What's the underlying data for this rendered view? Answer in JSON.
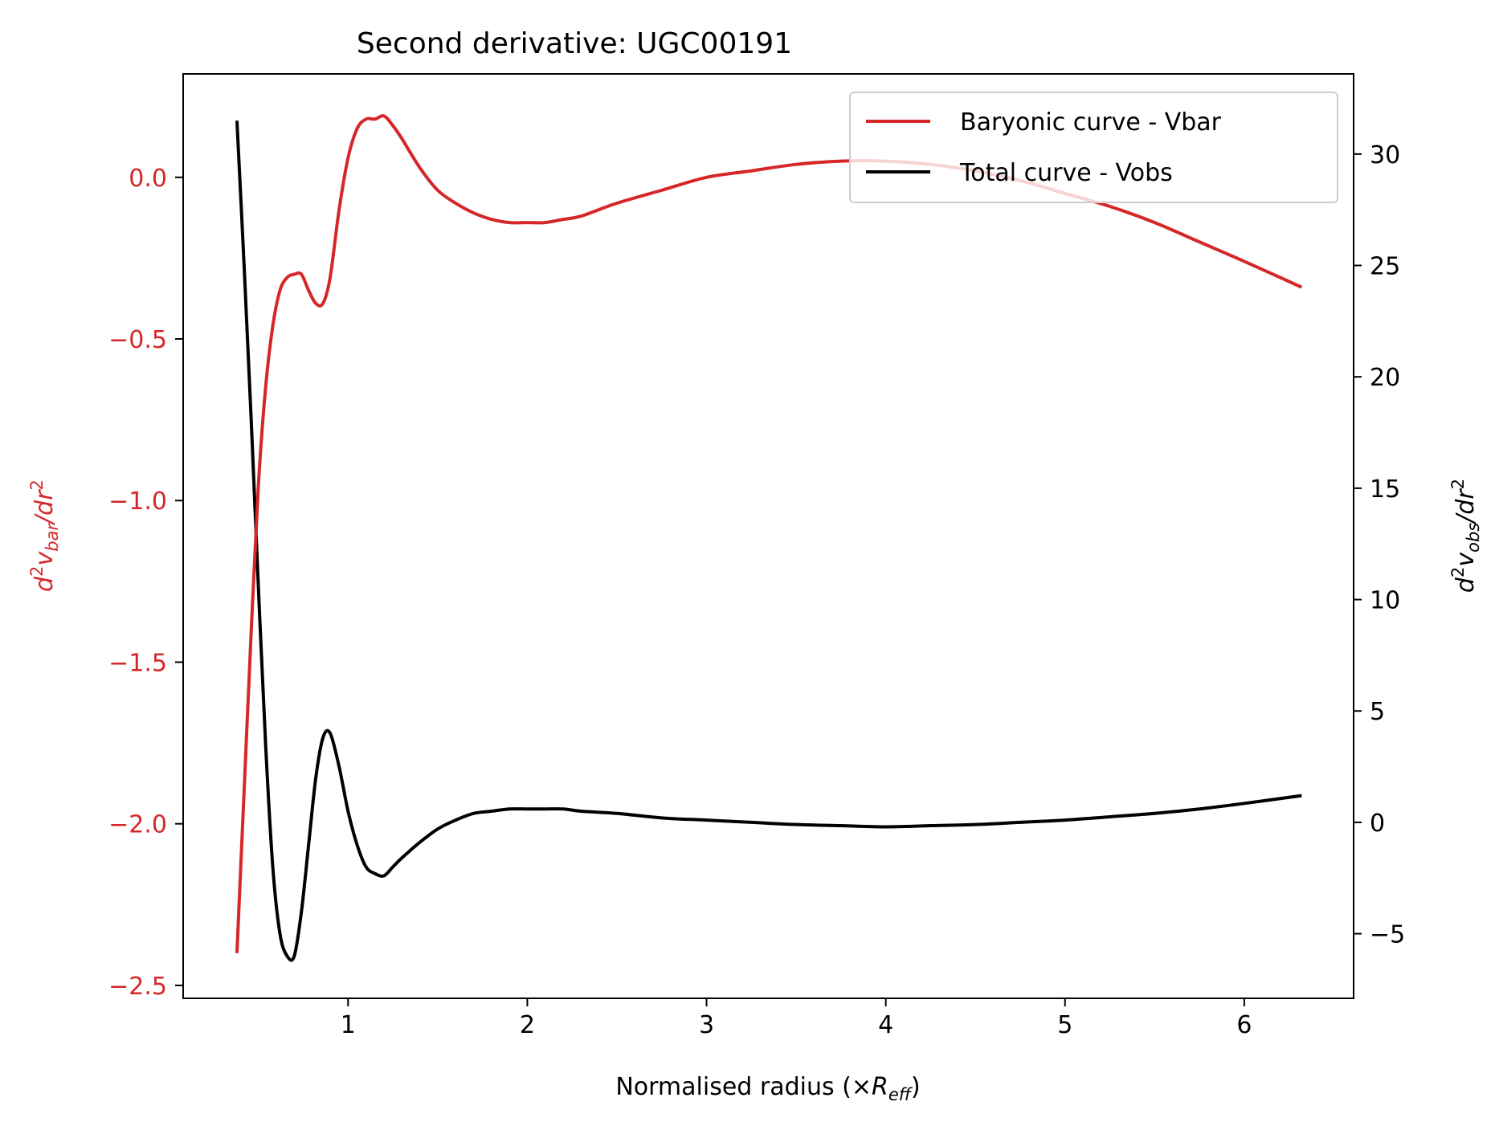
{
  "chart_data": {
    "type": "line",
    "title": "Second derivative: UGC00191",
    "xlabel": {
      "main": "Normalised radius (×",
      "var": "R",
      "sub": "eff",
      "close": ")"
    },
    "ylabel_left": {
      "d": "d",
      "sup1": "2",
      "v": "v",
      "sub": "bar",
      "slash": "/dr",
      "sup2": "2"
    },
    "ylabel_right": {
      "d": "d",
      "sup1": "2",
      "v": "v",
      "sub": "obs",
      "slash": "/dr",
      "sup2": "2"
    },
    "xlim": [
      0.08,
      6.61
    ],
    "ylim_left": [
      -2.54,
      0.32
    ],
    "ylim_right": [
      -7.9,
      33.6
    ],
    "x_ticks": [
      1,
      2,
      3,
      4,
      5,
      6
    ],
    "y_left_ticks": [
      0.0,
      -0.5,
      -1.0,
      -1.5,
      -2.0,
      -2.5
    ],
    "y_left_tick_labels": [
      "0.0",
      "−0.5",
      "−1.0",
      "−1.5",
      "−2.0",
      "−2.5"
    ],
    "y_right_ticks": [
      30,
      25,
      20,
      15,
      10,
      5,
      0,
      -5
    ],
    "y_right_tick_labels": [
      "30",
      "25",
      "20",
      "15",
      "10",
      "5",
      "0",
      "−5"
    ],
    "grid": false,
    "legend": {
      "position": "upper right"
    },
    "series": [
      {
        "name": "Baryonic curve - Vbar",
        "axis": "left",
        "color": "#d62728",
        "x": [
          0.38,
          0.42,
          0.46,
          0.5,
          0.54,
          0.58,
          0.62,
          0.66,
          0.7,
          0.74,
          0.78,
          0.82,
          0.86,
          0.9,
          0.95,
          1.0,
          1.05,
          1.1,
          1.15,
          1.2,
          1.25,
          1.3,
          1.4,
          1.5,
          1.6,
          1.7,
          1.8,
          1.9,
          2.0,
          2.1,
          2.2,
          2.3,
          2.5,
          2.75,
          3.0,
          3.25,
          3.5,
          3.75,
          4.0,
          4.25,
          4.5,
          4.75,
          5.0,
          5.25,
          5.5,
          5.75,
          6.0,
          6.32
        ],
        "y": [
          -2.4,
          -1.9,
          -1.4,
          -0.95,
          -0.65,
          -0.46,
          -0.35,
          -0.31,
          -0.3,
          -0.3,
          -0.35,
          -0.39,
          -0.39,
          -0.31,
          -0.1,
          0.06,
          0.15,
          0.18,
          0.18,
          0.19,
          0.16,
          0.12,
          0.03,
          -0.04,
          -0.08,
          -0.11,
          -0.13,
          -0.14,
          -0.14,
          -0.14,
          -0.13,
          -0.12,
          -0.08,
          -0.04,
          0.0,
          0.02,
          0.04,
          0.05,
          0.05,
          0.04,
          0.02,
          -0.01,
          -0.05,
          -0.09,
          -0.14,
          -0.2,
          -0.26,
          -0.34
        ]
      },
      {
        "name": "Total curve - Vobs",
        "axis": "right",
        "color": "#000000",
        "x": [
          0.38,
          0.42,
          0.46,
          0.5,
          0.54,
          0.58,
          0.62,
          0.66,
          0.7,
          0.74,
          0.78,
          0.82,
          0.86,
          0.9,
          0.95,
          1.0,
          1.05,
          1.1,
          1.15,
          1.2,
          1.25,
          1.3,
          1.4,
          1.5,
          1.6,
          1.7,
          1.8,
          1.9,
          2.0,
          2.1,
          2.2,
          2.3,
          2.5,
          2.75,
          3.0,
          3.25,
          3.5,
          3.75,
          4.0,
          4.25,
          4.5,
          4.75,
          5.0,
          5.25,
          5.5,
          5.75,
          6.0,
          6.32
        ],
        "y": [
          31.5,
          25.0,
          18.0,
          10.5,
          3.5,
          -2.0,
          -5.0,
          -6.0,
          -6.0,
          -4.0,
          -1.0,
          2.0,
          3.8,
          4.0,
          2.5,
          0.5,
          -1.0,
          -2.0,
          -2.3,
          -2.4,
          -2.0,
          -1.6,
          -0.9,
          -0.3,
          0.1,
          0.4,
          0.5,
          0.6,
          0.6,
          0.6,
          0.6,
          0.5,
          0.4,
          0.2,
          0.1,
          0.0,
          -0.1,
          -0.15,
          -0.2,
          -0.15,
          -0.1,
          0.0,
          0.1,
          0.25,
          0.4,
          0.6,
          0.85,
          1.2
        ]
      }
    ]
  }
}
